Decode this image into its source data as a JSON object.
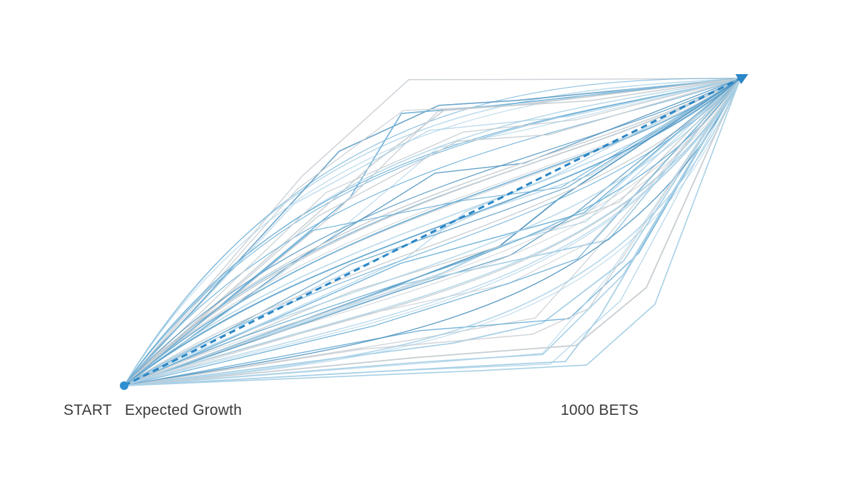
{
  "labels": {
    "start": "START",
    "expected": "Expected Growth",
    "end": "1000 BETS"
  },
  "colors": {
    "path_blue_light": "#a8d0e6",
    "path_blue": "#6aaed6",
    "path_blue_dark": "#4a90bd",
    "path_gray": "#c7cdd2",
    "expected_line": "#2a86c6",
    "start_dot": "#2e8fd0",
    "arrow_head": "#2a86c6"
  },
  "diagram": {
    "path_count": 64,
    "expected_line_style": "dashed",
    "end_marker": "arrow-icon",
    "start_marker": "dot-icon"
  }
}
